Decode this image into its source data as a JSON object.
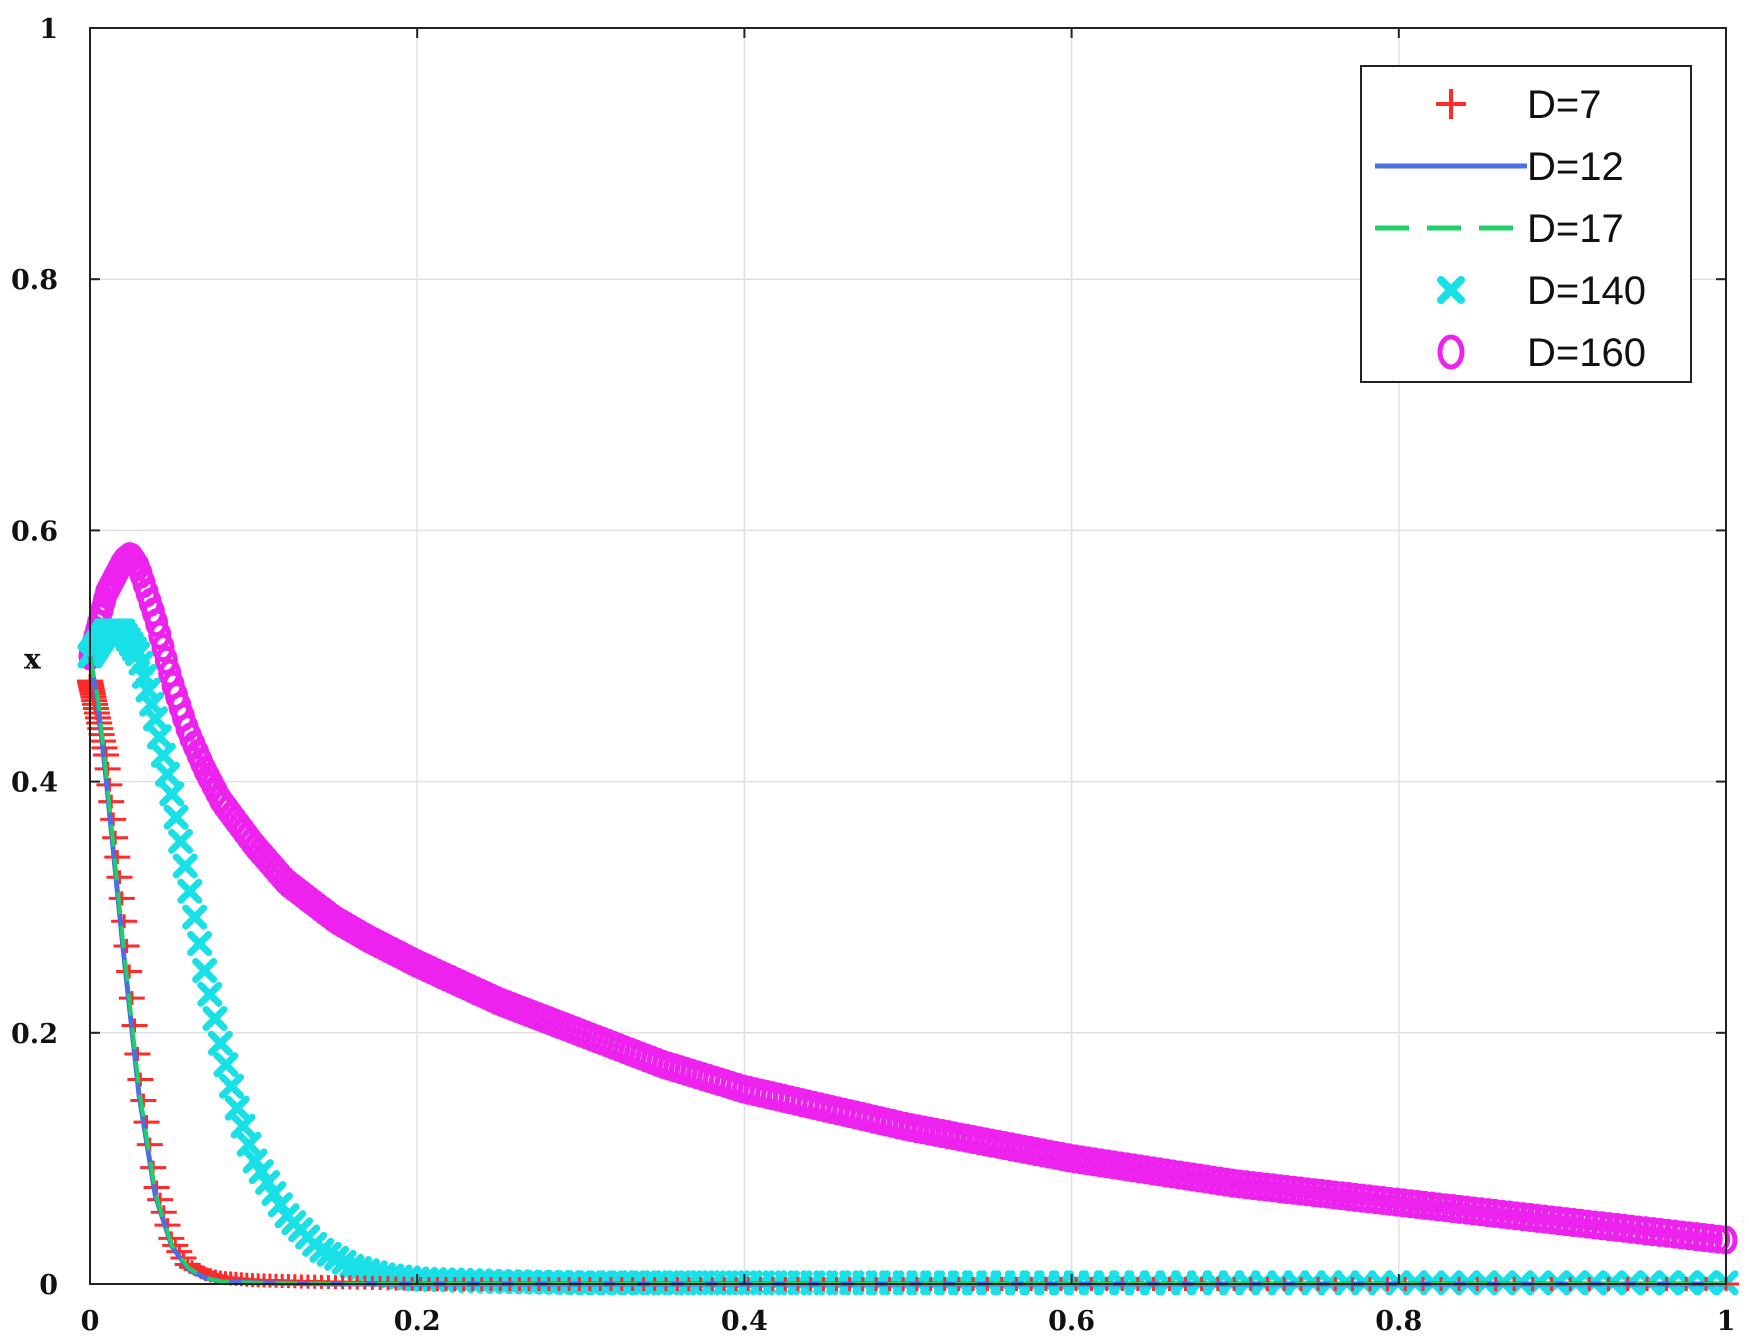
{
  "chart_data": {
    "type": "line",
    "title": "",
    "xlabel": "",
    "ylabel": "x",
    "xlim": [
      0,
      1
    ],
    "ylim": [
      0,
      1
    ],
    "xticks": [
      "0",
      "0.2",
      "0.4",
      "0.6",
      "0.8",
      "1"
    ],
    "yticks": [
      "0",
      "0.2",
      "0.4",
      "0.6",
      "0.8",
      "1"
    ],
    "grid": true,
    "legend_position": "top-right",
    "series": [
      {
        "name": "D=7",
        "color": "#ff2a2a",
        "style": "plus-marker",
        "x": [
          0,
          0.01,
          0.02,
          0.03,
          0.04,
          0.05,
          0.06,
          0.07,
          0.08,
          0.1,
          0.13,
          0.17,
          0.2,
          0.3,
          0.5,
          0.7,
          1.0
        ],
        "y": [
          0.48,
          0.42,
          0.3,
          0.17,
          0.08,
          0.035,
          0.015,
          0.008,
          0.005,
          0.003,
          0.002,
          0.001,
          0,
          0,
          0,
          0,
          0
        ]
      },
      {
        "name": "D=12",
        "color": "#4a6fe0",
        "style": "solid",
        "x": [
          0,
          0.005,
          0.01,
          0.02,
          0.03,
          0.04,
          0.05,
          0.06,
          0.07,
          0.08,
          0.1,
          0.15,
          0.2,
          0.5,
          1.0
        ],
        "y": [
          0.5,
          0.46,
          0.4,
          0.27,
          0.15,
          0.07,
          0.03,
          0.012,
          0.005,
          0.002,
          0.001,
          0,
          0,
          0,
          0
        ]
      },
      {
        "name": "D=17",
        "color": "#1fd06a",
        "style": "dashed",
        "x": [
          0,
          0.005,
          0.01,
          0.02,
          0.03,
          0.04,
          0.05,
          0.06,
          0.07,
          0.08,
          0.1,
          0.15,
          0.2,
          0.5,
          1.0
        ],
        "y": [
          0.5,
          0.465,
          0.405,
          0.275,
          0.155,
          0.072,
          0.031,
          0.013,
          0.005,
          0.002,
          0.001,
          0,
          0,
          0,
          0
        ]
      },
      {
        "name": "D=140",
        "color": "#19e0e6",
        "style": "x-marker",
        "x": [
          0,
          0.01,
          0.02,
          0.03,
          0.04,
          0.05,
          0.06,
          0.07,
          0.08,
          0.09,
          0.1,
          0.12,
          0.14,
          0.16,
          0.18,
          0.2,
          0.25,
          0.3,
          0.4,
          0.5,
          0.6,
          0.7,
          0.8,
          0.9,
          1.0
        ],
        "y": [
          0.5,
          0.52,
          0.52,
          0.5,
          0.45,
          0.39,
          0.32,
          0.25,
          0.19,
          0.14,
          0.1,
          0.055,
          0.028,
          0.014,
          0.007,
          0.004,
          0.002,
          0.001,
          0.001,
          0.001,
          0.001,
          0.001,
          0.001,
          0.001,
          0.001
        ]
      },
      {
        "name": "D=160",
        "color": "#ee22ee",
        "style": "circle-marker",
        "x": [
          0,
          0.01,
          0.02,
          0.025,
          0.03,
          0.04,
          0.05,
          0.06,
          0.07,
          0.08,
          0.1,
          0.12,
          0.15,
          0.17,
          0.2,
          0.25,
          0.3,
          0.35,
          0.4,
          0.45,
          0.5,
          0.6,
          0.7,
          0.8,
          0.9,
          1.0
        ],
        "y": [
          0.5,
          0.55,
          0.575,
          0.58,
          0.57,
          0.53,
          0.48,
          0.44,
          0.41,
          0.385,
          0.35,
          0.32,
          0.29,
          0.275,
          0.255,
          0.225,
          0.2,
          0.175,
          0.155,
          0.14,
          0.125,
          0.1,
          0.08,
          0.065,
          0.05,
          0.035
        ]
      }
    ]
  }
}
